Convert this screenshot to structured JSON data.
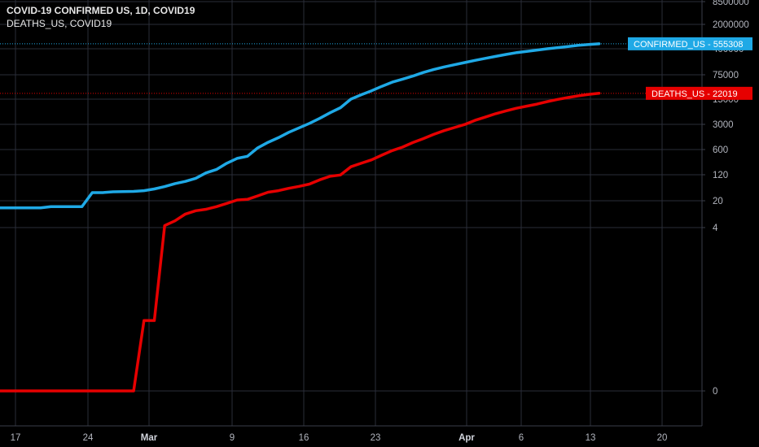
{
  "legend": {
    "title": "COVID-19 CONFIRMED US, 1D, COVID19",
    "series2": "DEATHS_US, COVID19"
  },
  "colors": {
    "background": "#000000",
    "grid": "#2a2e39",
    "confirmed": "#1fa9e6",
    "deaths": "#e60000",
    "axis_text": "#b2b5be"
  },
  "chart_data": {
    "type": "line",
    "y_scale": "log-like (custom ticks)",
    "y_ticks": [
      "8500000",
      "2000000",
      "400000",
      "75000",
      "15000",
      "3000",
      "600",
      "120",
      "20",
      "4",
      "0"
    ],
    "x_ticks": [
      {
        "label": "17",
        "bold": false
      },
      {
        "label": "24",
        "bold": false
      },
      {
        "label": "Mar",
        "bold": true
      },
      {
        "label": "9",
        "bold": false
      },
      {
        "label": "16",
        "bold": false
      },
      {
        "label": "23",
        "bold": false
      },
      {
        "label": "Apr",
        "bold": true
      },
      {
        "label": "6",
        "bold": false
      },
      {
        "label": "13",
        "bold": false
      },
      {
        "label": "20",
        "bold": false
      }
    ],
    "x_range": [
      "2020-02-14",
      "2020-04-24"
    ],
    "series": [
      {
        "name": "CONFIRMED_US",
        "last_value": "555308",
        "points": [
          [
            "2020-02-14",
            13
          ],
          [
            "2020-02-18",
            13
          ],
          [
            "2020-02-19",
            14
          ],
          [
            "2020-02-21",
            14
          ],
          [
            "2020-02-22",
            14
          ],
          [
            "2020-02-23",
            35
          ],
          [
            "2020-02-24",
            35
          ],
          [
            "2020-02-25",
            37
          ],
          [
            "2020-02-27",
            38
          ],
          [
            "2020-02-28",
            40
          ],
          [
            "2020-02-29",
            45
          ],
          [
            "2020-03-01",
            53
          ],
          [
            "2020-03-02",
            65
          ],
          [
            "2020-03-03",
            76
          ],
          [
            "2020-03-04",
            94
          ],
          [
            "2020-03-05",
            135
          ],
          [
            "2020-03-06",
            167
          ],
          [
            "2020-03-07",
            250
          ],
          [
            "2020-03-08",
            340
          ],
          [
            "2020-03-09",
            390
          ],
          [
            "2020-03-10",
            670
          ],
          [
            "2020-03-11",
            950
          ],
          [
            "2020-03-12",
            1280
          ],
          [
            "2020-03-13",
            1800
          ],
          [
            "2020-03-14",
            2400
          ],
          [
            "2020-03-15",
            3200
          ],
          [
            "2020-03-16",
            4400
          ],
          [
            "2020-03-17",
            6300
          ],
          [
            "2020-03-18",
            8700
          ],
          [
            "2020-03-19",
            15000
          ],
          [
            "2020-03-20",
            20000
          ],
          [
            "2020-03-21",
            26000
          ],
          [
            "2020-03-22",
            35000
          ],
          [
            "2020-03-23",
            46000
          ],
          [
            "2020-03-24",
            56000
          ],
          [
            "2020-03-25",
            69000
          ],
          [
            "2020-03-26",
            87000
          ],
          [
            "2020-03-27",
            105000
          ],
          [
            "2020-03-28",
            124000
          ],
          [
            "2020-03-29",
            143000
          ],
          [
            "2020-03-30",
            164000
          ],
          [
            "2020-03-31",
            189000
          ],
          [
            "2020-04-01",
            216000
          ],
          [
            "2020-04-02",
            245000
          ],
          [
            "2020-04-03",
            277000
          ],
          [
            "2020-04-04",
            311000
          ],
          [
            "2020-04-05",
            337000
          ],
          [
            "2020-04-06",
            368000
          ],
          [
            "2020-04-07",
            400000
          ],
          [
            "2020-04-08",
            432000
          ],
          [
            "2020-04-09",
            466000
          ],
          [
            "2020-04-10",
            502000
          ],
          [
            "2020-04-11",
            530000
          ],
          [
            "2020-04-12",
            555308
          ]
        ]
      },
      {
        "name": "DEATHS_US",
        "last_value": "22019",
        "points": [
          [
            "2020-02-14",
            0
          ],
          [
            "2020-02-27",
            0
          ],
          [
            "2020-02-28",
            1
          ],
          [
            "2020-02-29",
            1
          ],
          [
            "2020-03-01",
            4.5
          ],
          [
            "2020-03-02",
            6
          ],
          [
            "2020-03-03",
            9
          ],
          [
            "2020-03-04",
            11
          ],
          [
            "2020-03-05",
            12
          ],
          [
            "2020-03-06",
            14
          ],
          [
            "2020-03-07",
            17
          ],
          [
            "2020-03-08",
            21
          ],
          [
            "2020-03-09",
            22
          ],
          [
            "2020-03-10",
            28
          ],
          [
            "2020-03-11",
            36
          ],
          [
            "2020-03-12",
            40
          ],
          [
            "2020-03-13",
            47
          ],
          [
            "2020-03-14",
            54
          ],
          [
            "2020-03-15",
            63
          ],
          [
            "2020-03-16",
            85
          ],
          [
            "2020-03-17",
            108
          ],
          [
            "2020-03-18",
            118
          ],
          [
            "2020-03-19",
            200
          ],
          [
            "2020-03-20",
            250
          ],
          [
            "2020-03-21",
            310
          ],
          [
            "2020-03-22",
            420
          ],
          [
            "2020-03-23",
            560
          ],
          [
            "2020-03-24",
            700
          ],
          [
            "2020-03-25",
            940
          ],
          [
            "2020-03-26",
            1200
          ],
          [
            "2020-03-27",
            1580
          ],
          [
            "2020-03-28",
            2000
          ],
          [
            "2020-03-29",
            2440
          ],
          [
            "2020-03-30",
            2970
          ],
          [
            "2020-03-31",
            3870
          ],
          [
            "2020-04-01",
            4760
          ],
          [
            "2020-04-02",
            5930
          ],
          [
            "2020-04-03",
            7090
          ],
          [
            "2020-04-04",
            8400
          ],
          [
            "2020-04-05",
            9620
          ],
          [
            "2020-04-06",
            10940
          ],
          [
            "2020-04-07",
            12850
          ],
          [
            "2020-04-08",
            14800
          ],
          [
            "2020-04-09",
            16700
          ],
          [
            "2020-04-10",
            18700
          ],
          [
            "2020-04-11",
            20600
          ],
          [
            "2020-04-12",
            22019
          ]
        ]
      }
    ]
  }
}
